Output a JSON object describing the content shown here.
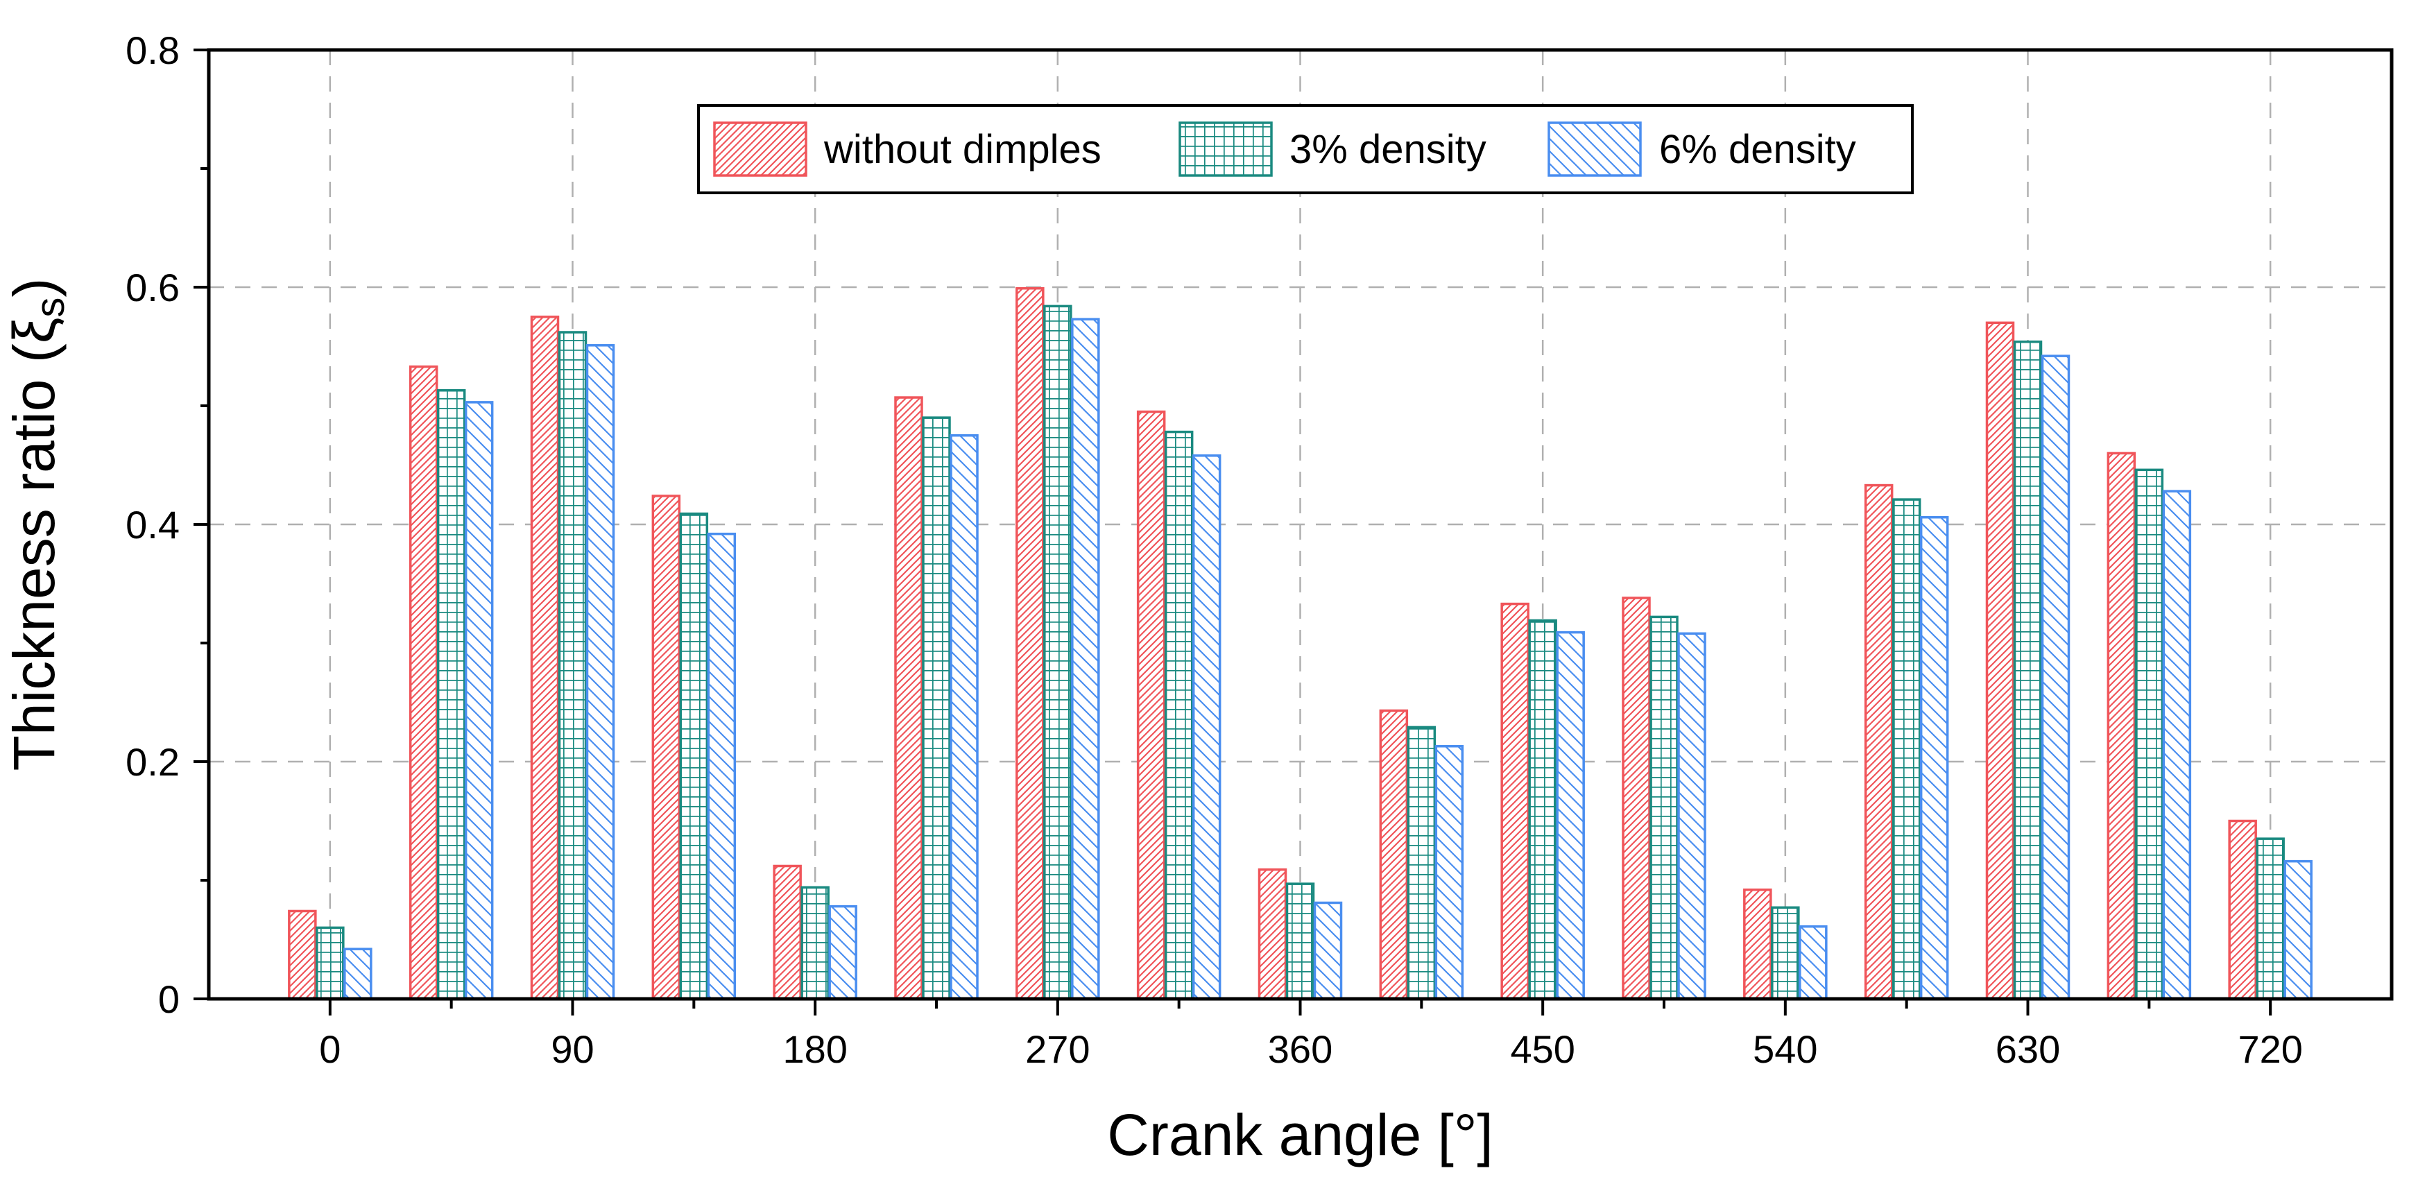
{
  "chart_data": {
    "type": "bar",
    "title": "",
    "xlabel": "Crank angle [°]",
    "ylabel_main": "Thickness ratio (ξ",
    "ylabel_sub": "s",
    "ylabel_end": ")",
    "ylim": [
      0,
      0.8
    ],
    "yticks": [
      "0",
      "0.2",
      "0.4",
      "0.6",
      "0.8"
    ],
    "xlim": [
      -45,
      765
    ],
    "xticks": [
      "0",
      "90",
      "180",
      "270",
      "360",
      "450",
      "540",
      "630",
      "720"
    ],
    "grid": true,
    "legend_position": "top-center",
    "categories": [
      0,
      45,
      90,
      135,
      180,
      225,
      270,
      315,
      360,
      405,
      450,
      495,
      540,
      585,
      630,
      675,
      720
    ],
    "series": [
      {
        "name": "without dimples",
        "color": "#f0555a",
        "pattern": "dense-diagonal",
        "values": [
          0.074,
          0.533,
          0.575,
          0.424,
          0.112,
          0.507,
          0.599,
          0.495,
          0.109,
          0.243,
          0.333,
          0.338,
          0.092,
          0.433,
          0.57,
          0.46,
          0.15
        ]
      },
      {
        "name": "3% density",
        "color": "#1a8a80",
        "pattern": "grid",
        "values": [
          0.06,
          0.513,
          0.562,
          0.409,
          0.094,
          0.49,
          0.584,
          0.478,
          0.097,
          0.229,
          0.319,
          0.322,
          0.077,
          0.421,
          0.554,
          0.446,
          0.135
        ]
      },
      {
        "name": "6% density",
        "color": "#4a8ef0",
        "pattern": "back-diagonal",
        "values": [
          0.042,
          0.503,
          0.551,
          0.392,
          0.078,
          0.475,
          0.573,
          0.458,
          0.081,
          0.213,
          0.309,
          0.308,
          0.061,
          0.406,
          0.542,
          0.428,
          0.116
        ]
      }
    ]
  }
}
